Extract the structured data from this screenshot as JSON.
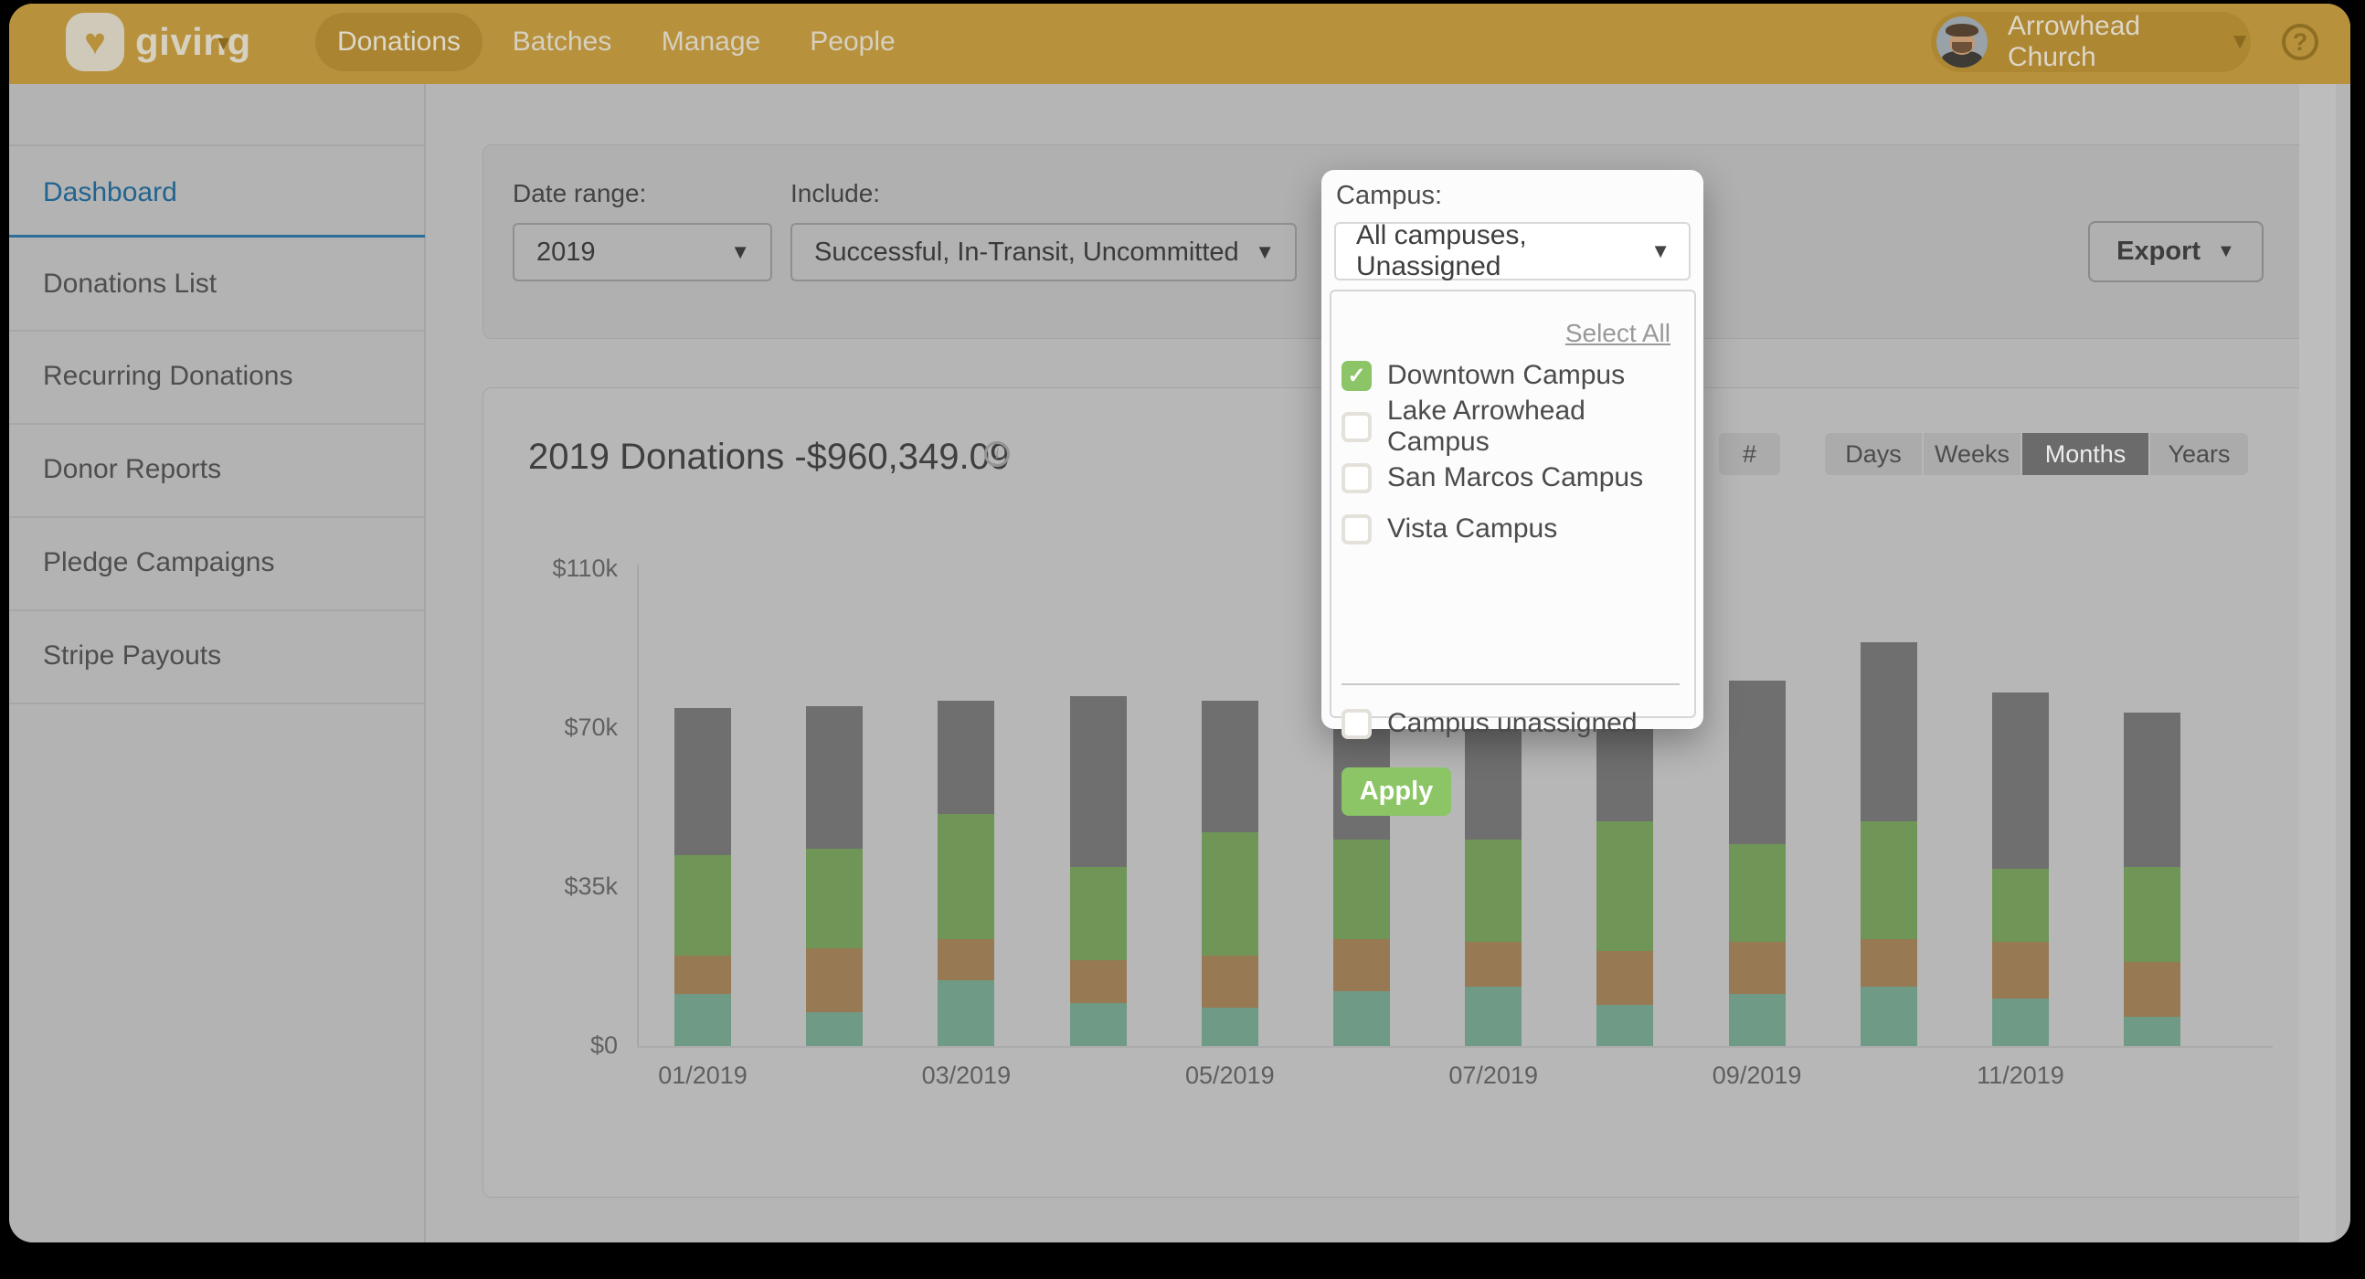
{
  "nav": {
    "product": "giving",
    "tabs": [
      {
        "label": "Donations",
        "active": true
      },
      {
        "label": "Batches",
        "active": false
      },
      {
        "label": "Manage",
        "active": false
      },
      {
        "label": "People",
        "active": false
      }
    ],
    "account_name": "Arrowhead Church",
    "colors": {
      "bar": "#b8913c",
      "active_pill": "#aa8431",
      "account_pill": "#ad8732",
      "text": "#d6d0c0"
    }
  },
  "sidebar": {
    "items": [
      {
        "label": "Dashboard",
        "active": true
      },
      {
        "label": "Donations List",
        "active": false
      },
      {
        "label": "Recurring Donations",
        "active": false
      },
      {
        "label": "Donor Reports",
        "active": false
      },
      {
        "label": "Pledge Campaigns",
        "active": false
      },
      {
        "label": "Stripe Payouts",
        "active": false
      }
    ],
    "active_color": "#21648f"
  },
  "filters": {
    "date_range_label": "Date range:",
    "date_range_value": "2019",
    "include_label": "Include:",
    "include_value": "Successful, In-Transit, Uncommitted",
    "export_label": "Export"
  },
  "campus_popup": {
    "label": "Campus:",
    "select_value": "All campuses, Unassigned",
    "select_all_label": "Select All",
    "options": [
      {
        "label": "Downtown Campus",
        "checked": true
      },
      {
        "label": "Lake Arrowhead Campus",
        "checked": false
      },
      {
        "label": "San Marcos Campus",
        "checked": false
      },
      {
        "label": "Vista Campus",
        "checked": false
      }
    ],
    "unassigned_option": {
      "label": "Campus unassigned",
      "checked": false
    },
    "apply_label": "Apply",
    "accent_green": "#8bc566"
  },
  "chart_card": {
    "title": "2019 Donations -$960,349.09",
    "hash_button": "#",
    "granularity_options": [
      "Days",
      "Weeks",
      "Months",
      "Years"
    ],
    "granularity_selected": "Months"
  },
  "chart_data": {
    "type": "bar",
    "stacked": true,
    "title": "2019 Donations -$960,349.09",
    "categories": [
      "01/2019",
      "02/2019",
      "03/2019",
      "04/2019",
      "05/2019",
      "06/2019",
      "07/2019",
      "08/2019",
      "09/2019",
      "10/2019",
      "11/2019",
      "12/2019"
    ],
    "x_tick_labels_visible": [
      "01/2019",
      "03/2019",
      "05/2019",
      "07/2019",
      "09/2019",
      "11/2019"
    ],
    "y_tick_labels": [
      "$0",
      "$35k",
      "$70k",
      "$110k"
    ],
    "y_unit": "USD thousands",
    "ylim": [
      0,
      110
    ],
    "grid": false,
    "legend": false,
    "series": [
      {
        "name": "segment-teal",
        "color": "#6f9a86",
        "values": [
          11.5,
          7.5,
          14.5,
          9.5,
          8.5,
          12,
          13,
          9,
          11.5,
          13,
          10.5,
          6.5
        ]
      },
      {
        "name": "segment-tan",
        "color": "#977a53",
        "values": [
          8.5,
          14,
          9,
          9.5,
          11.5,
          11.5,
          10,
          12,
          11.5,
          10.5,
          12.5,
          12
        ]
      },
      {
        "name": "segment-green",
        "color": "#6f9557",
        "values": [
          22,
          22,
          27.5,
          20.5,
          27,
          22,
          22.5,
          28.5,
          21.5,
          26,
          16,
          21
        ]
      },
      {
        "name": "segment-gray",
        "color": "#6f6f6f",
        "values": [
          33,
          32,
          26,
          38.5,
          30,
          30.5,
          29.5,
          24.5,
          37.5,
          42,
          40,
          34.5
        ]
      }
    ]
  }
}
